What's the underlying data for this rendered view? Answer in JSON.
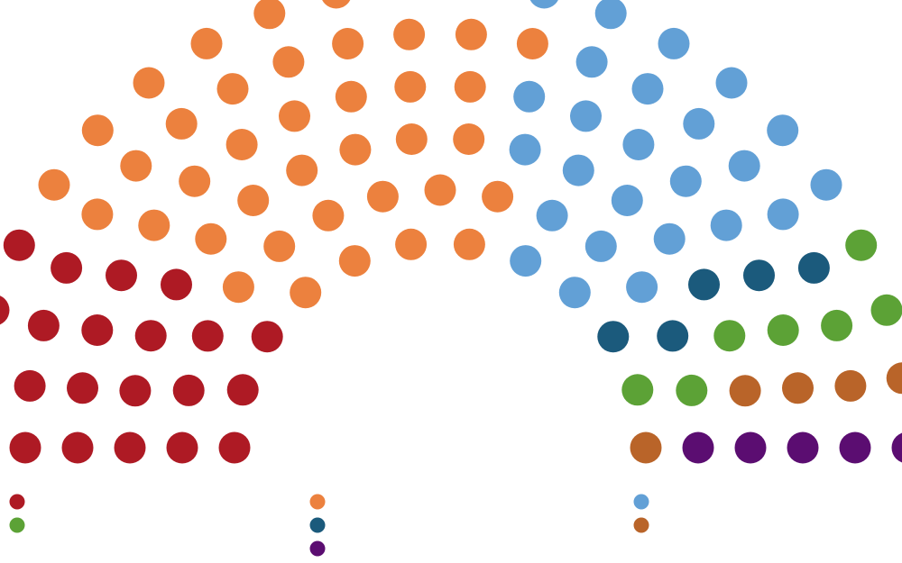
{
  "chart_data": {
    "type": "parliament",
    "title": "",
    "total_seats": 109,
    "series": [
      {
        "color": "#ae1a24",
        "seats": 22
      },
      {
        "color": "#ec813e",
        "seats": 40
      },
      {
        "color": "#62a0d6",
        "seats": 25
      },
      {
        "color": "#1b5a7c",
        "seats": 5
      },
      {
        "color": "#5ca236",
        "seats": 7
      },
      {
        "color": "#b96429",
        "seats": 5
      },
      {
        "color": "#5b0d71",
        "seats": 5
      }
    ],
    "legend": {
      "placement": "bottom",
      "labels": [],
      "order": [
        0,
        4,
        1,
        3,
        6,
        2,
        5
      ]
    }
  }
}
